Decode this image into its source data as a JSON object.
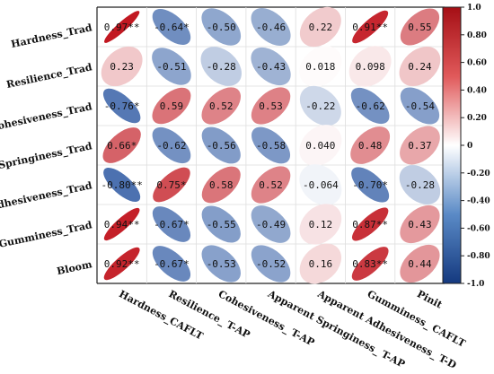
{
  "chart_data": {
    "type": "heatmap",
    "style": "correlation-ellipse",
    "rows": [
      "Hardness_Trad",
      "Resilience_Trad",
      "Cohesiveness_Trad",
      "Springiness_Trad",
      "Adhesiveness_Trad",
      "Gumminess_Trad",
      "Bloom"
    ],
    "columns": [
      "Hardness_CAFLT",
      "Resilience_ T-AP",
      "Cohesiveness_ T-AP",
      "Apparent Springiness_ T-AP",
      "Apparent Adhesiveness_ T-D",
      "Gumminess_ CAFLT",
      "Pinit"
    ],
    "values": [
      [
        0.97,
        -0.64,
        -0.5,
        -0.46,
        0.22,
        0.91,
        0.55
      ],
      [
        0.23,
        -0.51,
        -0.28,
        -0.43,
        0.018,
        0.098,
        0.24
      ],
      [
        -0.76,
        0.59,
        0.52,
        0.53,
        -0.22,
        -0.62,
        -0.54
      ],
      [
        0.66,
        -0.62,
        -0.56,
        -0.58,
        0.04,
        0.48,
        0.37
      ],
      [
        -0.8,
        0.75,
        0.58,
        0.52,
        -0.064,
        -0.7,
        -0.28
      ],
      [
        0.94,
        -0.67,
        -0.55,
        -0.49,
        0.12,
        0.87,
        0.43
      ],
      [
        0.92,
        -0.67,
        -0.53,
        -0.52,
        0.16,
        0.83,
        0.44
      ]
    ],
    "labels": [
      [
        "0.97**",
        "-0.64*",
        "-0.50",
        "-0.46",
        "0.22",
        "0.91**",
        "0.55"
      ],
      [
        "0.23",
        "-0.51",
        "-0.28",
        "-0.43",
        "0.018",
        "0.098",
        "0.24"
      ],
      [
        "-0.76*",
        "0.59",
        "0.52",
        "0.53",
        "-0.22",
        "-0.62",
        "-0.54"
      ],
      [
        "0.66*",
        "-0.62",
        "-0.56",
        "-0.58",
        "0.040",
        "0.48",
        "0.37"
      ],
      [
        "-0.80**",
        "0.75*",
        "0.58",
        "0.52",
        "-0.064",
        "-0.70*",
        "-0.28"
      ],
      [
        "0.94**",
        "-0.67*",
        "-0.55",
        "-0.49",
        "0.12",
        "0.87**",
        "0.43"
      ],
      [
        "0.92**",
        "-0.67*",
        "-0.53",
        "-0.52",
        "0.16",
        "0.83**",
        "0.44"
      ]
    ],
    "colorbar": {
      "range": [
        -1.0,
        1.0
      ],
      "ticks": [
        "1.0",
        "0.80",
        "0.60",
        "0.40",
        "0.20",
        "0",
        "-0.20",
        "-0.40",
        "-0.60",
        "-0.80",
        "-1.0"
      ],
      "colors": {
        "negative": "#1f4e9c",
        "neutral": "#ffffff",
        "positive": "#c0111a"
      }
    }
  }
}
